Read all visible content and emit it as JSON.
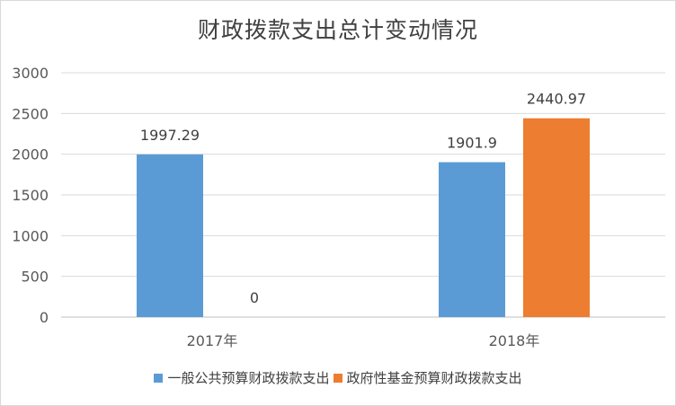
{
  "chart_data": {
    "type": "bar",
    "title": "财政拨款支出总计变动情况",
    "categories": [
      "2017年",
      "2018年"
    ],
    "series": [
      {
        "name": "一般公共预算财政拨款支出",
        "values": [
          1997.29,
          1901.9
        ],
        "labels": [
          "1997.29",
          "1901.9"
        ],
        "color": "#5b9bd5"
      },
      {
        "name": "政府性基金预算财政拨款支出",
        "values": [
          0,
          2440.97
        ],
        "labels": [
          "0",
          "2440.97"
        ],
        "color": "#ed7d31"
      }
    ],
    "yticks": [
      "0",
      "500",
      "1000",
      "1500",
      "2000",
      "2500",
      "3000"
    ],
    "ylim": [
      0,
      3000
    ],
    "grid": true,
    "legend_position": "bottom"
  }
}
